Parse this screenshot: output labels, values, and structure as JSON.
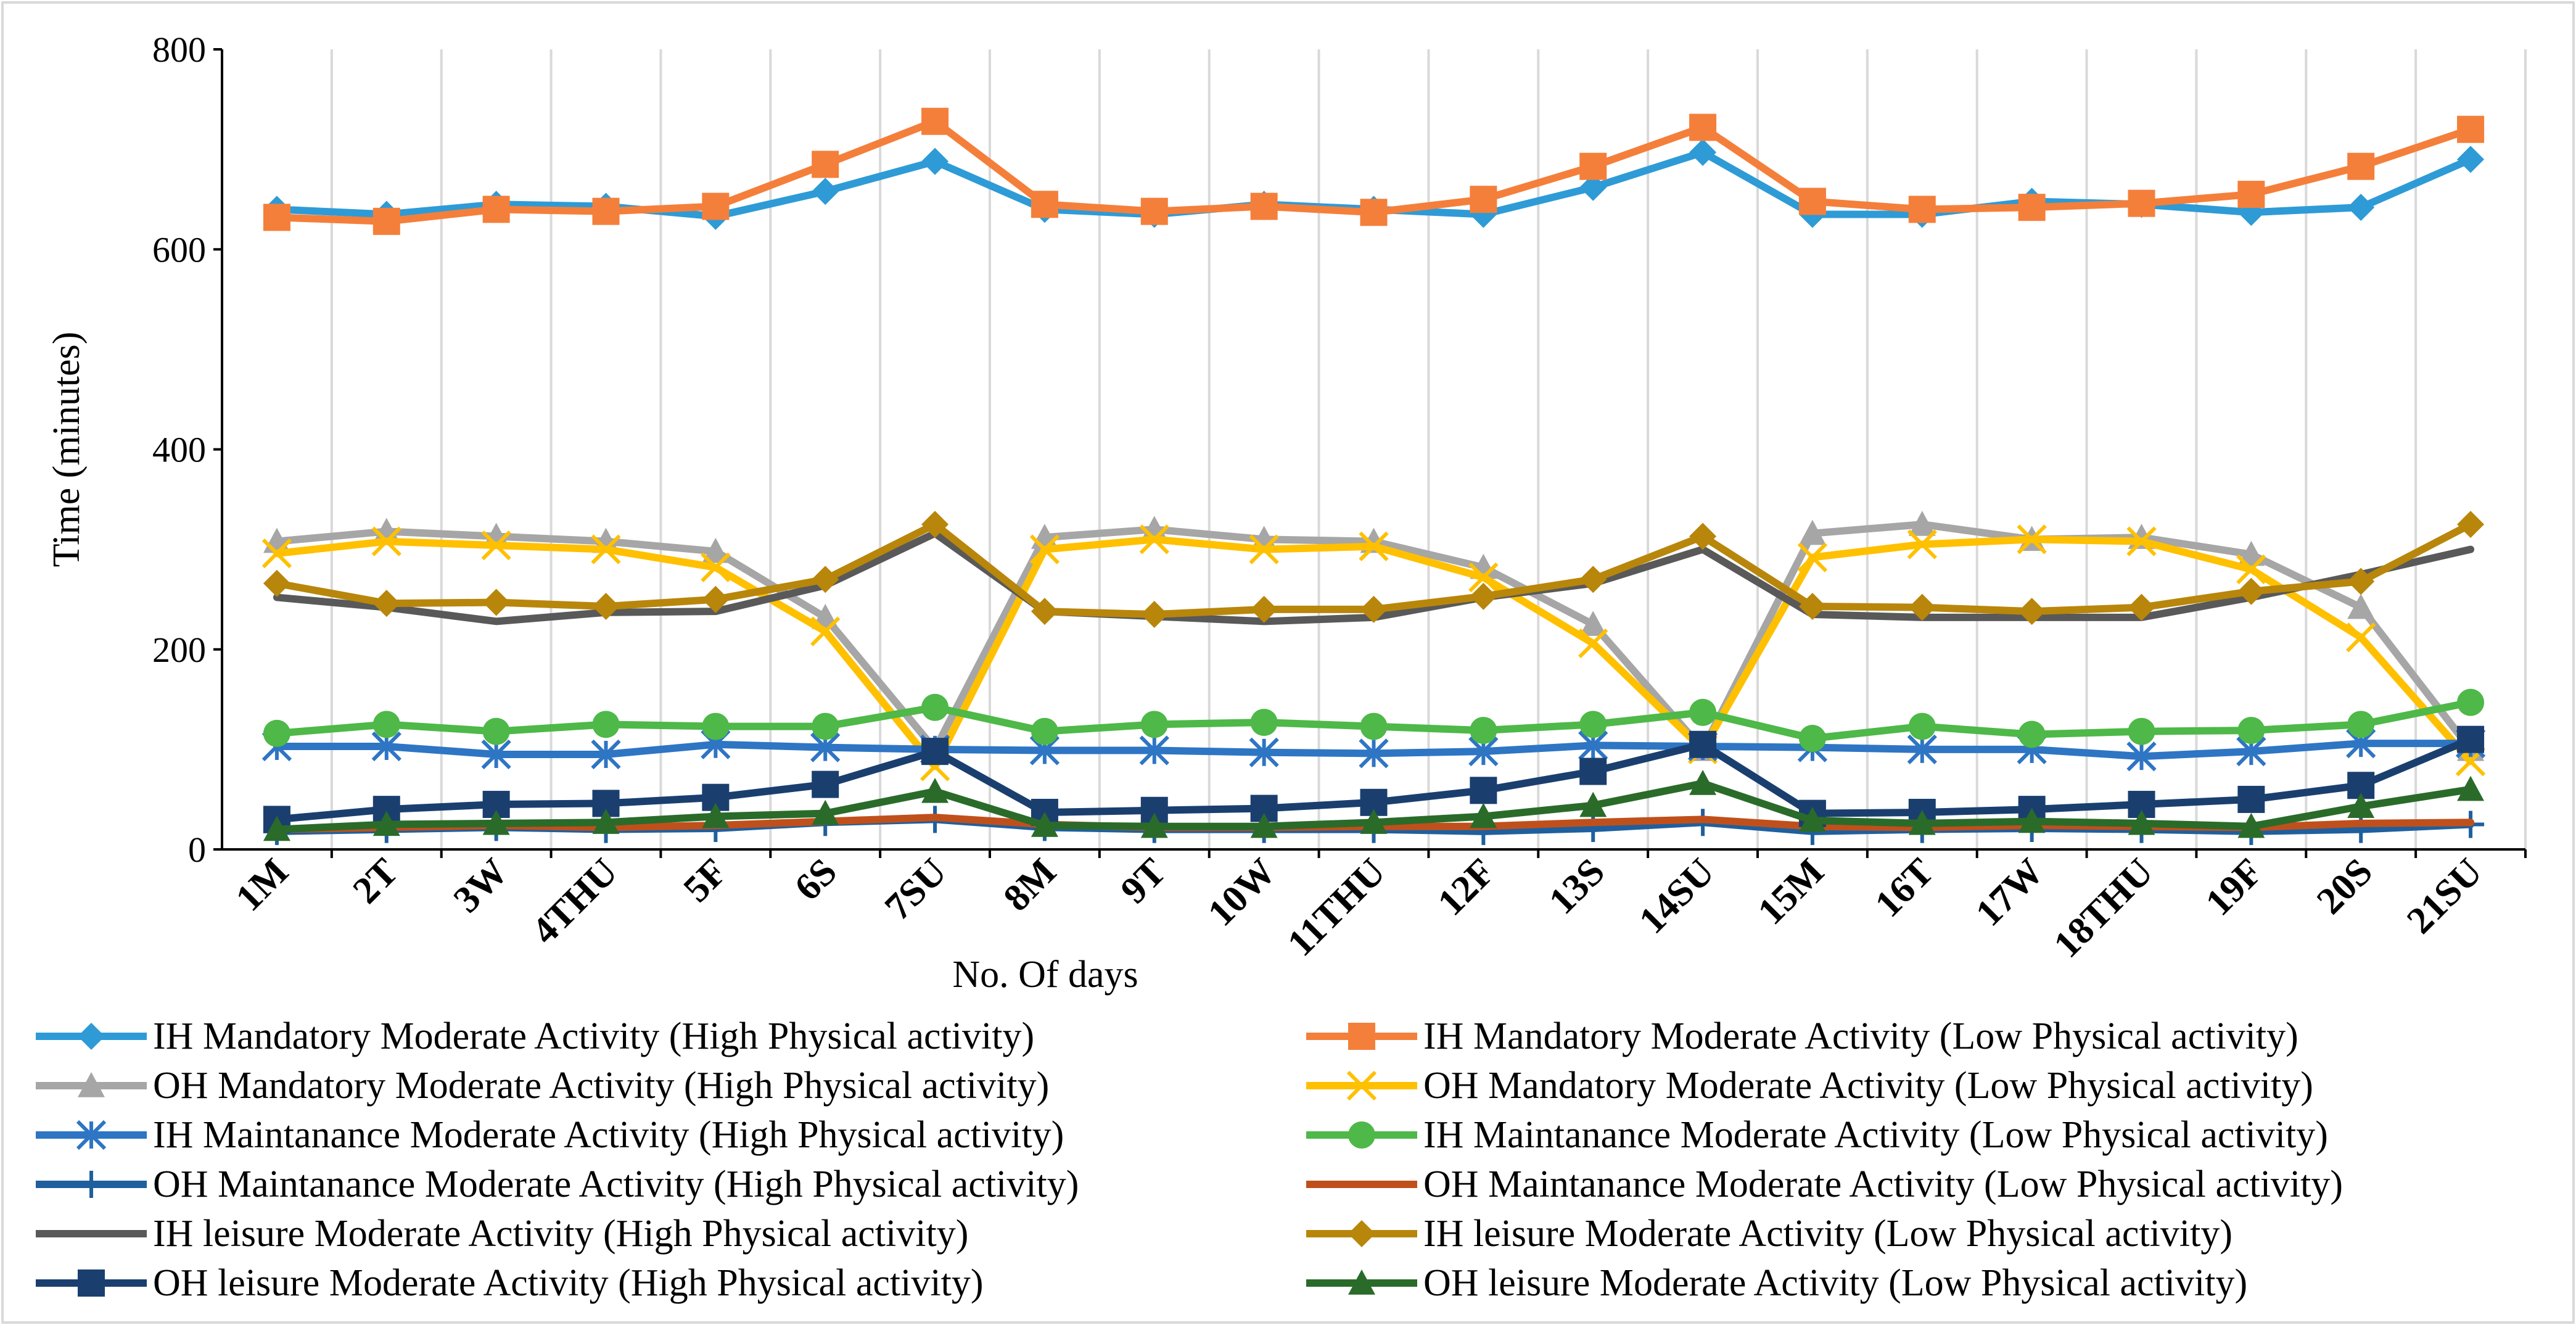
{
  "chart_data": {
    "type": "line",
    "title": "",
    "xlabel": "No. Of days",
    "ylabel": "Time (minutes)",
    "ylim": [
      0,
      800
    ],
    "yticks": [
      0,
      200,
      400,
      600,
      800
    ],
    "grid": "vertical",
    "legend_position": "bottom",
    "categories": [
      "1M",
      "2T",
      "3W",
      "4THU",
      "5F",
      "6S",
      "7SU",
      "8M",
      "9T",
      "10W",
      "11THU",
      "12F",
      "13S",
      "14SU",
      "15M",
      "16T",
      "17W",
      "18THU",
      "19F",
      "20S",
      "21SU"
    ],
    "series": [
      {
        "name": "IH Mandatory Moderate Activity (High Physical activity)",
        "color": "#2e9bd6",
        "marker": "diamond",
        "values": [
          640,
          635,
          645,
          643,
          633,
          658,
          688,
          640,
          635,
          645,
          640,
          635,
          662,
          697,
          635,
          635,
          648,
          645,
          637,
          642,
          690
        ]
      },
      {
        "name": "IH Mandatory Moderate Activity (Low Physical activity)",
        "color": "#f47f3b",
        "marker": "square",
        "values": [
          632,
          628,
          640,
          638,
          643,
          685,
          728,
          645,
          638,
          643,
          637,
          650,
          683,
          722,
          648,
          640,
          642,
          646,
          655,
          683,
          720
        ]
      },
      {
        "name": "OH Mandatory Moderate Activity (High Physical activity)",
        "color": "#a6a6a6",
        "marker": "triangle",
        "values": [
          308,
          318,
          313,
          308,
          298,
          232,
          100,
          312,
          320,
          310,
          308,
          282,
          225,
          100,
          316,
          325,
          310,
          312,
          295,
          242,
          100
        ]
      },
      {
        "name": "OH Mandatory Moderate Activity (Low Physical activity)",
        "color": "#ffc000",
        "marker": "x",
        "values": [
          296,
          308,
          304,
          300,
          282,
          218,
          83,
          300,
          310,
          300,
          303,
          272,
          206,
          100,
          292,
          305,
          310,
          308,
          280,
          212,
          88
        ]
      },
      {
        "name": "IH Maintanance Moderate Activity (High Physical activity)",
        "color": "#2e75c4",
        "marker": "asterisk",
        "values": [
          103,
          103,
          95,
          95,
          105,
          102,
          100,
          99,
          99,
          97,
          96,
          98,
          104,
          103,
          102,
          100,
          100,
          93,
          98,
          106,
          106
        ]
      },
      {
        "name": "IH Maintanance  Moderate Activity (Low Physical activity)",
        "color": "#4eb848",
        "marker": "circle",
        "values": [
          116,
          125,
          118,
          125,
          123,
          123,
          142,
          118,
          125,
          127,
          123,
          119,
          125,
          137,
          111,
          123,
          115,
          118,
          119,
          125,
          147
        ]
      },
      {
        "name": "OH Maintanance  Moderate Activity (High Physical activity)",
        "color": "#1f5f9e",
        "marker": "plus",
        "values": [
          18,
          20,
          22,
          20,
          21,
          27,
          30,
          22,
          20,
          20,
          20,
          18,
          21,
          27,
          18,
          20,
          21,
          20,
          18,
          20,
          25
        ]
      },
      {
        "name": "OH Maintanance  Moderate Activity (Low Physical activity)",
        "color": "#c0501b",
        "marker": "none",
        "values": [
          20,
          22,
          24,
          22,
          24,
          28,
          32,
          25,
          22,
          22,
          23,
          23,
          27,
          30,
          23,
          22,
          24,
          23,
          22,
          26,
          27
        ]
      },
      {
        "name": "IH leisure  Moderate Activity (High Physical activity)",
        "color": "#595959",
        "marker": "none",
        "values": [
          252,
          242,
          228,
          237,
          238,
          264,
          316,
          238,
          233,
          228,
          232,
          252,
          266,
          300,
          235,
          232,
          232,
          232,
          252,
          275,
          300
        ]
      },
      {
        "name": "IH leisure  Moderate Activity (Low Physical activity)",
        "color": "#b8860b",
        "marker": "diamond",
        "values": [
          266,
          246,
          247,
          243,
          250,
          270,
          325,
          238,
          235,
          240,
          240,
          253,
          270,
          313,
          243,
          242,
          238,
          242,
          258,
          268,
          325
        ]
      },
      {
        "name": "OH leisure  Moderate Activity (High Physical activity)",
        "color": "#1a3f6f",
        "marker": "square",
        "values": [
          30,
          40,
          45,
          46,
          52,
          65,
          98,
          37,
          39,
          41,
          47,
          59,
          78,
          105,
          36,
          37,
          40,
          45,
          50,
          64,
          110
        ]
      },
      {
        "name": "OH leisure  Moderate Activity (Low Physical activity)",
        "color": "#2a6b2a",
        "marker": "triangle",
        "values": [
          20,
          25,
          26,
          27,
          33,
          36,
          58,
          24,
          23,
          23,
          27,
          33,
          44,
          66,
          29,
          26,
          28,
          26,
          23,
          43,
          60
        ]
      }
    ]
  }
}
